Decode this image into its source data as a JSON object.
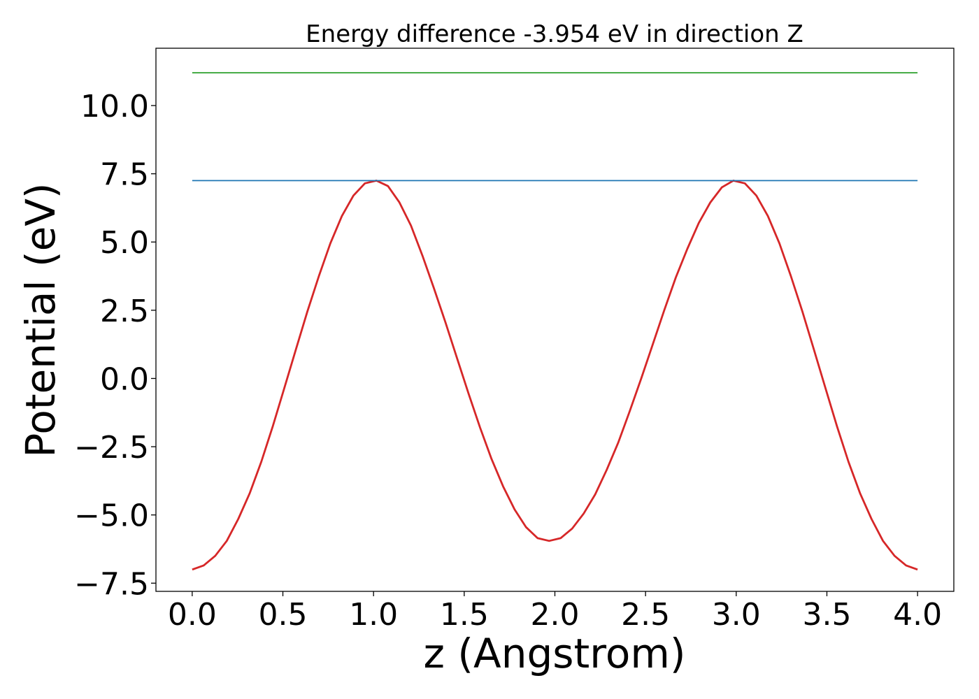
{
  "chart_data": {
    "type": "line",
    "title": "Energy difference -3.954 eV in direction Z",
    "xlabel": "z (Angstrom)",
    "ylabel": "Potential (eV)",
    "xlim": [
      -0.2,
      4.2
    ],
    "ylim": [
      -7.8,
      12.1
    ],
    "xticks": [
      0.0,
      0.5,
      1.0,
      1.5,
      2.0,
      2.5,
      3.0,
      3.5,
      4.0
    ],
    "xtick_labels": [
      "0.0",
      "0.5",
      "1.0",
      "1.5",
      "2.0",
      "2.5",
      "3.0",
      "3.5",
      "4.0"
    ],
    "yticks": [
      -7.5,
      -5.0,
      -2.5,
      0.0,
      2.5,
      5.0,
      7.5,
      10.0
    ],
    "ytick_labels": [
      "−7.5",
      "−5.0",
      "−2.5",
      "0.0",
      "2.5",
      "5.0",
      "7.5",
      "10.0"
    ],
    "grid": false,
    "series": [
      {
        "color": "#d62728",
        "x": [
          0.0,
          0.0635,
          0.127,
          0.1905,
          0.254,
          0.3175,
          0.381,
          0.4444,
          0.5079,
          0.5714,
          0.6349,
          0.6984,
          0.7619,
          0.8254,
          0.8889,
          0.9524,
          1.0159,
          1.0794,
          1.1429,
          1.2063,
          1.2698,
          1.3333,
          1.3968,
          1.4603,
          1.5238,
          1.5873,
          1.6508,
          1.7143,
          1.7778,
          1.8413,
          1.9048,
          1.9683,
          2.0317,
          2.0952,
          2.1587,
          2.2222,
          2.2857,
          2.3492,
          2.4127,
          2.4762,
          2.5397,
          2.6032,
          2.6667,
          2.7302,
          2.7937,
          2.8571,
          2.9206,
          2.9841,
          3.0476,
          3.1111,
          3.1746,
          3.2381,
          3.3016,
          3.3651,
          3.4286,
          3.4921,
          3.5556,
          3.619,
          3.6825,
          3.746,
          3.8095,
          3.873,
          3.9365,
          4.0
        ],
        "y": [
          -7.0,
          -6.85,
          -6.5,
          -5.95,
          -5.15,
          -4.2,
          -3.05,
          -1.75,
          -0.35,
          1.05,
          2.45,
          3.75,
          4.95,
          5.95,
          6.7,
          7.15,
          7.25,
          7.05,
          6.45,
          5.6,
          4.5,
          3.3,
          2.05,
          0.75,
          -0.55,
          -1.8,
          -2.95,
          -3.95,
          -4.8,
          -5.45,
          -5.85,
          -5.95,
          -5.85,
          -5.5,
          -4.95,
          -4.25,
          -3.35,
          -2.35,
          -1.2,
          0.0,
          1.25,
          2.5,
          3.7,
          4.75,
          5.7,
          6.45,
          7.0,
          7.25,
          7.15,
          6.7,
          5.95,
          4.95,
          3.75,
          2.45,
          1.05,
          -0.35,
          -1.75,
          -3.05,
          -4.2,
          -5.15,
          -5.95,
          -6.5,
          -6.85,
          -7.0
        ]
      },
      {
        "color": "#1f77b4",
        "x": [
          0.0,
          4.0
        ],
        "y": [
          7.25,
          7.25
        ]
      },
      {
        "color": "#2ca02c",
        "x": [
          0.0,
          4.0
        ],
        "y": [
          11.2,
          11.2
        ]
      }
    ]
  }
}
